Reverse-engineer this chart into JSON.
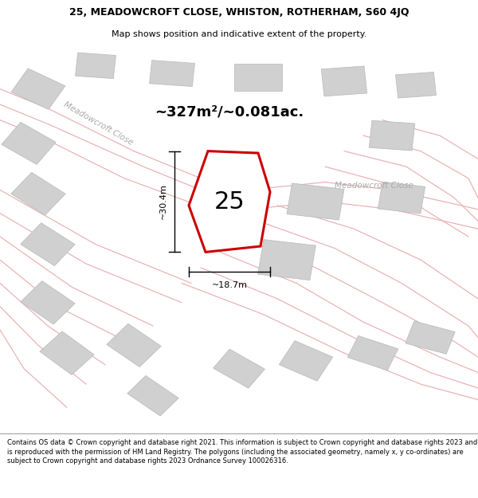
{
  "title_line1": "25, MEADOWCROFT CLOSE, WHISTON, ROTHERHAM, S60 4JQ",
  "title_line2": "Map shows position and indicative extent of the property.",
  "footer_text": "Contains OS data © Crown copyright and database right 2021. This information is subject to Crown copyright and database rights 2023 and is reproduced with the permission of HM Land Registry. The polygons (including the associated geometry, namely x, y co-ordinates) are subject to Crown copyright and database rights 2023 Ordnance Survey 100026316.",
  "area_text": "~327m²/~0.081ac.",
  "plot_number": "25",
  "width_label": "~18.7m",
  "height_label": "~30.4m",
  "street_name_diag": "Meadowcroft Close",
  "street_name_right": "Meadowcroft Close",
  "road_color": "#e8b0b0",
  "building_color": "#d0d0d0",
  "building_edge": "#b8b8b8",
  "plot_fill": "#ffffff",
  "plot_outline_color": "#cc0000",
  "dim_line_color": "#000000",
  "map_bg": "#f2f2f2",
  "title_fontsize": 9,
  "subtitle_fontsize": 8,
  "area_fontsize": 13,
  "plot_num_fontsize": 22,
  "street_fontsize": 7.5,
  "dim_fontsize": 8,
  "footer_fontsize": 6.0
}
